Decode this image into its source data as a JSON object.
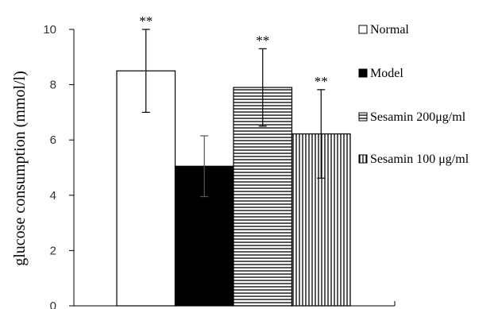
{
  "chart_data": {
    "type": "bar",
    "ylabel": "glucose consumption (mmol/l)",
    "xlabel": "",
    "ylim": [
      0,
      10
    ],
    "yticks": [
      0,
      2,
      4,
      6,
      8,
      10
    ],
    "legend_position": "right",
    "series": [
      {
        "name": "Normal",
        "value": 8.5,
        "error": 1.5,
        "significance": "**",
        "fill": "white",
        "color": "#ffffff"
      },
      {
        "name": "Model",
        "value": 5.05,
        "error": 1.1,
        "significance": "",
        "fill": "solid",
        "color": "#000000"
      },
      {
        "name": "Sesamin 200μg/ml",
        "value": 7.9,
        "error": 1.4,
        "significance": "**",
        "fill": "horizontal-stripes",
        "color": "#000000"
      },
      {
        "name": "Sesamin 100 μg/ml",
        "value": 6.22,
        "error": 1.6,
        "significance": "**",
        "fill": "vertical-stripes",
        "color": "#000000"
      }
    ]
  }
}
